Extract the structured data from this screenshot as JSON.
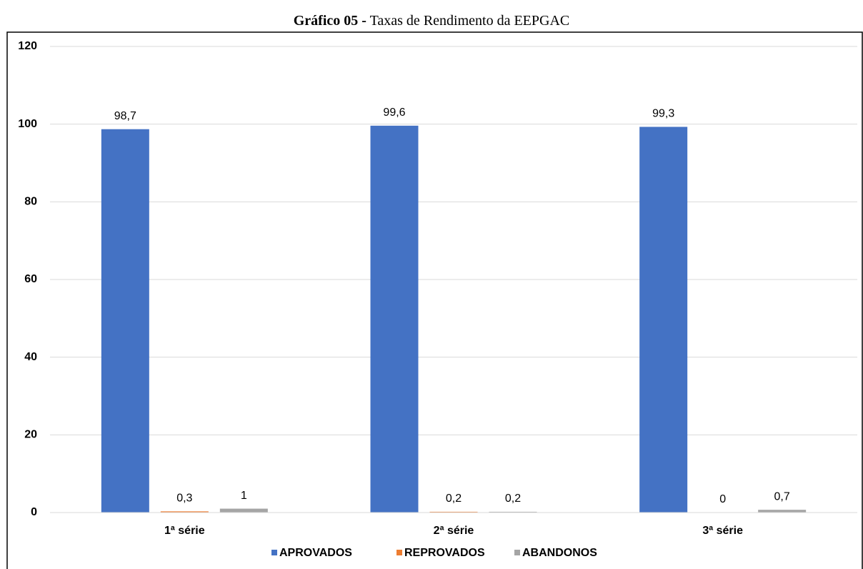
{
  "chart_data": {
    "type": "bar",
    "title": {
      "label": "Gráfico 05 -",
      "text": "Taxas de Rendimento da EEPGAC"
    },
    "categories": [
      "1ª série",
      "2ª série",
      "3ª série"
    ],
    "series": [
      {
        "name": "APROVADOS",
        "color": "#4472c4",
        "values": [
          98.7,
          99.6,
          99.3
        ],
        "value_labels": [
          "98,7",
          "99,6",
          "99,3"
        ]
      },
      {
        "name": "REPROVADOS",
        "color": "#ed7d31",
        "values": [
          0.3,
          0.2,
          0
        ],
        "value_labels": [
          "0,3",
          "0,2",
          "0"
        ]
      },
      {
        "name": "ABANDONOS",
        "color": "#a5a5a5",
        "values": [
          1,
          0.2,
          0.7
        ],
        "value_labels": [
          "1",
          "0,2",
          "0,7"
        ]
      }
    ],
    "ylim": [
      0,
      120
    ],
    "yticks": [
      0,
      20,
      40,
      60,
      80,
      100,
      120
    ],
    "grid": true,
    "legend": "bottom"
  }
}
